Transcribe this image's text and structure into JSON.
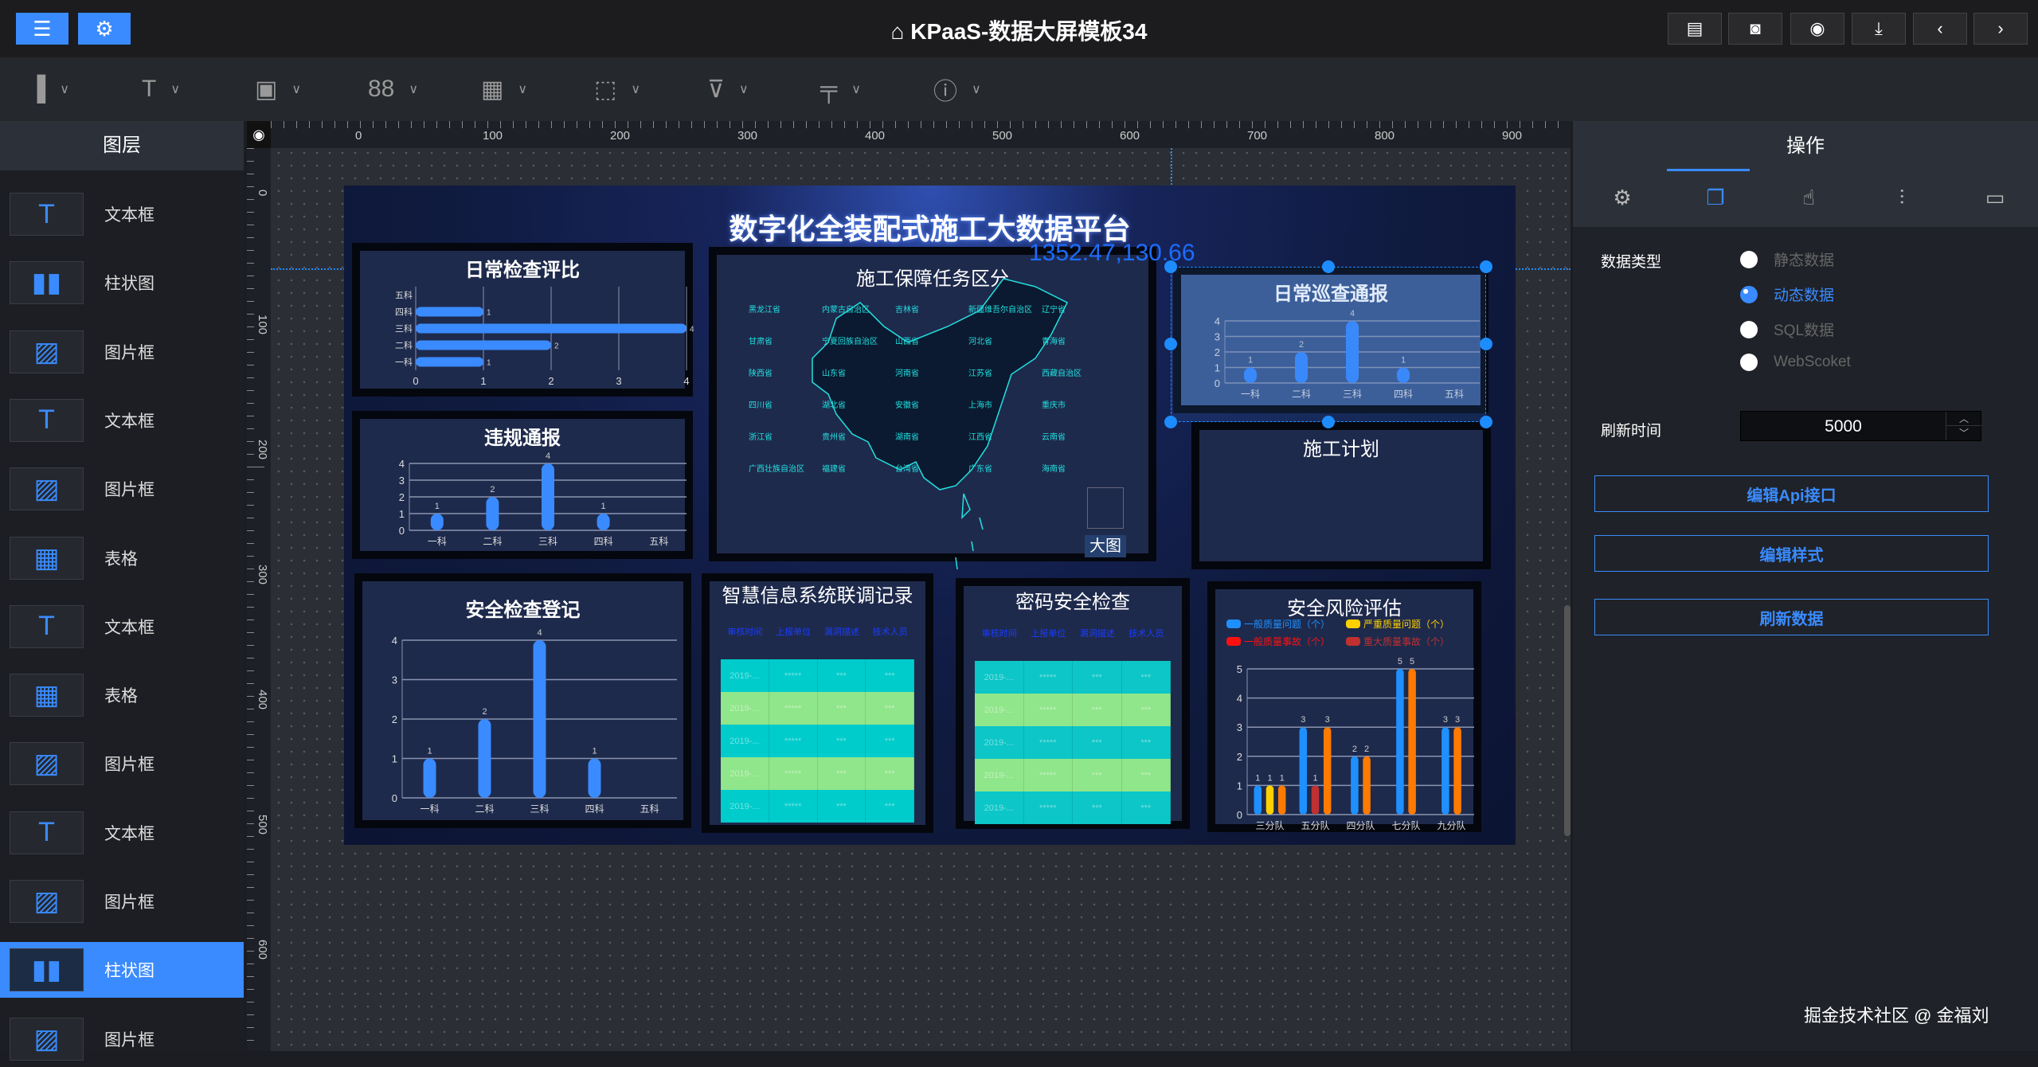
{
  "app": {
    "title": "KPaaS-数据大屏模板34",
    "icons": [
      "presentation-icon"
    ]
  },
  "topbar": {
    "left_buttons": [
      "sliders-icon",
      "gear-icon"
    ],
    "right_buttons": [
      "clipboard-icon",
      "camera-icon",
      "eye-icon",
      "download-icon",
      "chevron-left-icon",
      "chevron-right-icon"
    ]
  },
  "toolbar": {
    "tools": [
      {
        "icon": "bar-chart-icon",
        "glyph": "▐"
      },
      {
        "icon": "text-icon",
        "glyph": "T"
      },
      {
        "icon": "image-icon",
        "glyph": "▣"
      },
      {
        "icon": "grid-icon",
        "glyph": "88"
      },
      {
        "icon": "table-icon",
        "glyph": "▦"
      },
      {
        "icon": "border-icon",
        "glyph": "⬚"
      },
      {
        "icon": "filter-icon",
        "glyph": "⊽"
      },
      {
        "icon": "paint-roller-icon",
        "glyph": "╤"
      },
      {
        "icon": "info-icon",
        "glyph": "ⓘ"
      }
    ],
    "chevron": "∨"
  },
  "layers": {
    "title": "图层",
    "items": [
      {
        "label": "文本框",
        "type": "text"
      },
      {
        "label": "柱状图",
        "type": "bar"
      },
      {
        "label": "图片框",
        "type": "image"
      },
      {
        "label": "文本框",
        "type": "text"
      },
      {
        "label": "图片框",
        "type": "image"
      },
      {
        "label": "表格",
        "type": "table"
      },
      {
        "label": "文本框",
        "type": "text"
      },
      {
        "label": "表格",
        "type": "table"
      },
      {
        "label": "图片框",
        "type": "image"
      },
      {
        "label": "文本框",
        "type": "text"
      },
      {
        "label": "图片框",
        "type": "image"
      },
      {
        "label": "柱状图",
        "type": "bar",
        "selected": true
      },
      {
        "label": "图片框",
        "type": "image"
      }
    ]
  },
  "ruler": {
    "h": [
      "0",
      "100",
      "200",
      "300",
      "400",
      "500",
      "600",
      "700",
      "800",
      "900"
    ],
    "v": [
      "0",
      "100",
      "200",
      "300",
      "400",
      "500",
      "600"
    ]
  },
  "screen": {
    "title": "数字化全装配式施工大数据平台",
    "cursor_readout": "1352.47,130.66",
    "map": {
      "title": "施工保障任务区分",
      "regions": [
        "黑龙江省",
        "内蒙古自治区",
        "吉林省",
        "新疆维吾尔自治区",
        "辽宁省",
        "甘肃省",
        "宁夏回族自治区",
        "山西省",
        "河北省",
        "青海省",
        "陕西省",
        "山东省",
        "河南省",
        "江苏省",
        "西藏自治区",
        "四川省",
        "湖北省",
        "安徽省",
        "上海市",
        "重庆市",
        "浙江省",
        "贵州省",
        "湖南省",
        "江西省",
        "云南省",
        "广西壮族自治区",
        "福建省",
        "台湾省",
        "广东省",
        "海南省"
      ],
      "big_map_label": "大图"
    },
    "plan_title": "施工计划",
    "tables": [
      {
        "title": "智慧信息系统联调记录",
        "headers": [
          "审核时间",
          "上报单位",
          "漏洞描述",
          "技术人员"
        ],
        "rows": [
          [
            "2019-...",
            "*****",
            "***",
            "***"
          ],
          [
            "2019-...",
            "*****",
            "***",
            "***"
          ],
          [
            "2019-...",
            "*****",
            "***",
            "***"
          ],
          [
            "2019-...",
            "*****",
            "***",
            "***"
          ],
          [
            "2019-...",
            "*****",
            "***",
            "***"
          ]
        ],
        "colors": [
          "#00cccc",
          "#90e68a"
        ]
      },
      {
        "title": "密码安全检查",
        "headers": [
          "审核时间",
          "上报单位",
          "漏洞描述",
          "技术人员"
        ],
        "rows": [
          [
            "2019-...",
            "*****",
            "***",
            "***"
          ],
          [
            "2019-...",
            "*****",
            "***",
            "***"
          ],
          [
            "2019-...",
            "*****",
            "***",
            "***"
          ],
          [
            "2019-...",
            "*****",
            "***",
            "***"
          ],
          [
            "2019-...",
            "*****",
            "***",
            "***"
          ]
        ],
        "colors": [
          "#0cc6c8",
          "#90e68a"
        ]
      }
    ]
  },
  "chart_data": [
    {
      "id": "daily-check",
      "type": "bar",
      "orientation": "horizontal",
      "title": "日常检查评比",
      "categories": [
        "一科",
        "二科",
        "三科",
        "四科",
        "五科"
      ],
      "values": [
        1,
        2,
        4,
        1,
        null
      ],
      "xlim": [
        0,
        4
      ],
      "ticks": [
        "0",
        "1",
        "2",
        "3",
        "4"
      ],
      "grid": true,
      "color": "#3a8bff"
    },
    {
      "id": "violation",
      "type": "bar",
      "title": "违规通报",
      "categories": [
        "一科",
        "二科",
        "三科",
        "四科",
        "五科"
      ],
      "values": [
        1,
        2,
        4,
        1,
        null
      ],
      "ylim": [
        0,
        4
      ],
      "ticks": [
        "0",
        "1",
        "2",
        "3",
        "4"
      ],
      "grid": true,
      "color": "#3a8bff"
    },
    {
      "id": "safety-register",
      "type": "bar",
      "title": "安全检查登记",
      "categories": [
        "一科",
        "二科",
        "三科",
        "四科",
        "五科"
      ],
      "values": [
        1,
        2,
        4,
        1,
        null
      ],
      "ylim": [
        0,
        4
      ],
      "ticks": [
        "0",
        "1",
        "2",
        "3",
        "4"
      ],
      "grid": true,
      "color": "#3a8bff"
    },
    {
      "id": "patrol",
      "type": "bar",
      "title": "日常巡查通报",
      "categories": [
        "一科",
        "二科",
        "三科",
        "四科",
        "五科"
      ],
      "values": [
        1,
        2,
        4,
        1,
        null
      ],
      "ylim": [
        0,
        4
      ],
      "ticks": [
        "0",
        "1",
        "2",
        "3",
        "4"
      ],
      "grid": true,
      "color": "#3a8bff"
    },
    {
      "id": "risk",
      "type": "bar",
      "title": "安全风险评估",
      "categories": [
        "三分队",
        "五分队",
        "四分队",
        "七分队",
        "九分队"
      ],
      "ylim": [
        0,
        5
      ],
      "ticks": [
        "0",
        "1",
        "2",
        "3",
        "4",
        "5"
      ],
      "grid": true,
      "legend": "top",
      "series": [
        {
          "name": "一般质量问题（个）",
          "color": "#1e90ff",
          "values": [
            1,
            3,
            2,
            5,
            3
          ]
        },
        {
          "name": "严重质量问题（个）",
          "color": "#ffd000",
          "values": [
            1,
            null,
            null,
            null,
            null
          ]
        },
        {
          "name": "一般质量事故（个）",
          "color": "#ff1010",
          "values": [
            null,
            null,
            null,
            null,
            null
          ]
        },
        {
          "name": "重大质量事故（个）",
          "color": "#c03030",
          "values": [
            null,
            1,
            null,
            null,
            null
          ]
        },
        {
          "color": "#ff7a00",
          "values": [
            1,
            3,
            2,
            5,
            3
          ]
        }
      ]
    }
  ],
  "right_panel": {
    "title": "操作",
    "tabs": [
      "gear-icon",
      "copy-icon",
      "pointer-hand-icon",
      "sliders-icon",
      "folder-icon"
    ],
    "data_type_label": "数据类型",
    "data_types": [
      {
        "label": "静态数据",
        "checked": false
      },
      {
        "label": "动态数据",
        "checked": true
      },
      {
        "label": "SQL数据",
        "checked": false
      },
      {
        "label": "WebScoket",
        "checked": false
      }
    ],
    "refresh_label": "刷新时间",
    "refresh_value": "5000",
    "buttons": [
      "编辑Api接口",
      "编辑样式",
      "刷新数据"
    ],
    "accent": "#3a8bff"
  },
  "watermark": "掘金技术社区 @ 金福刘"
}
